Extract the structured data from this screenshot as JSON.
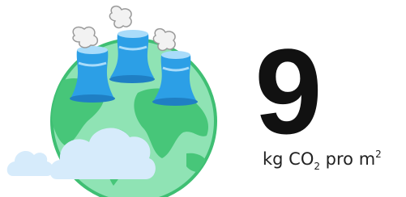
{
  "value": 9,
  "unit": {
    "prefix": "kg CO",
    "subscript": "2",
    "middle": " pro m",
    "superscript": "2"
  }
}
